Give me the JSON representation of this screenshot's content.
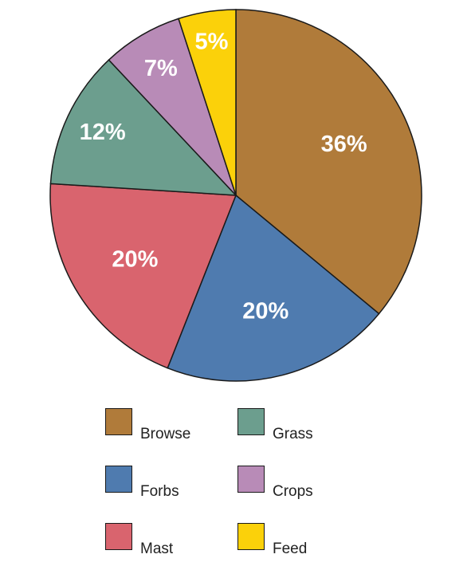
{
  "chart_data": {
    "type": "pie",
    "title": "",
    "slices": [
      {
        "label": "Browse",
        "value": 36,
        "display": "36%",
        "color": "#B07B3A"
      },
      {
        "label": "Forbs",
        "value": 20,
        "display": "20%",
        "color": "#4F7BAF"
      },
      {
        "label": "Mast",
        "value": 20,
        "display": "20%",
        "color": "#D9646E"
      },
      {
        "label": "Grass",
        "value": 12,
        "display": "12%",
        "color": "#6C9E8E"
      },
      {
        "label": "Crops",
        "value": 7,
        "display": "7%",
        "color": "#B88BB7"
      },
      {
        "label": "Feed",
        "value": 5,
        "display": "5%",
        "color": "#FBD10A"
      }
    ],
    "legend_placement": "bottom",
    "legend": [
      {
        "label": "Browse",
        "color": "#B07B3A"
      },
      {
        "label": "Forbs",
        "color": "#4F7BAF"
      },
      {
        "label": "Mast",
        "color": "#D9646E"
      },
      {
        "label": "Grass",
        "color": "#6C9E8E"
      },
      {
        "label": "Crops",
        "color": "#B88BB7"
      },
      {
        "label": "Feed",
        "color": "#FBD10A"
      }
    ]
  }
}
